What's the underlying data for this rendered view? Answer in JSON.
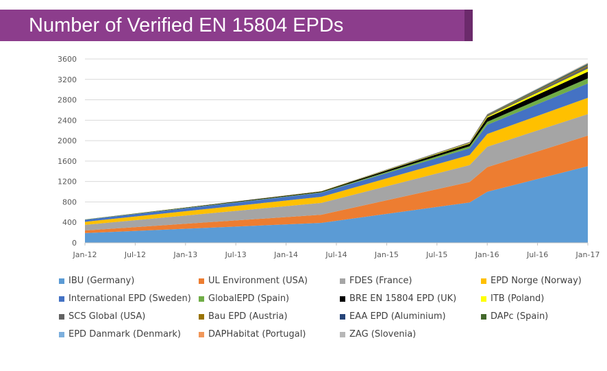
{
  "header": {
    "title": "Number of Verified EN 15804 EPDs"
  },
  "chart_data": {
    "type": "area",
    "stacked": true,
    "title": "Number of Verified EN 15804 EPDs",
    "xlabel": "",
    "ylabel": "",
    "x_tick_labels": [
      "Jan-12",
      "Jul-12",
      "Jan-13",
      "Jul-13",
      "Jan-14",
      "Jul-14",
      "Jan-15",
      "Jul-15",
      "Jan-16",
      "Jul-16",
      "Jan-17"
    ],
    "y_ticks": [
      0,
      400,
      800,
      1200,
      1600,
      2000,
      2400,
      2800,
      3200,
      3600
    ],
    "ylim": [
      0,
      3600
    ],
    "xlim": [
      0,
      10
    ],
    "grid": "horizontal",
    "legend_position": "bottom",
    "x": [
      0,
      4.7,
      7.65,
      8,
      10
    ],
    "series": [
      {
        "name": "IBU (Germany)",
        "color": "#5b9bd5",
        "values": [
          190,
          390,
          790,
          1000,
          1500
        ]
      },
      {
        "name": "UL Environment (USA)",
        "color": "#ed7d31",
        "values": [
          50,
          160,
          400,
          480,
          600
        ]
      },
      {
        "name": "FDES (France)",
        "color": "#a5a5a5",
        "values": [
          110,
          230,
          330,
          400,
          420
        ]
      },
      {
        "name": "EPD Norge (Norway)",
        "color": "#ffc000",
        "values": [
          60,
          120,
          200,
          250,
          320
        ]
      },
      {
        "name": "International EPD (Sweden)",
        "color": "#4472c4",
        "values": [
          40,
          80,
          130,
          180,
          280
        ]
      },
      {
        "name": "GlobalEPD (Spain)",
        "color": "#70ad47",
        "values": [
          5,
          10,
          40,
          60,
          100
        ]
      },
      {
        "name": "BRE EN 15804 EPD (UK)",
        "color": "#000000",
        "values": [
          2,
          15,
          50,
          80,
          130
        ]
      },
      {
        "name": "ITB (Poland)",
        "color": "#ffff00",
        "values": [
          0,
          2,
          10,
          20,
          60
        ]
      },
      {
        "name": "SCS Global (USA)",
        "color": "#636363",
        "values": [
          0,
          2,
          10,
          20,
          50
        ]
      },
      {
        "name": "Bau EPD (Austria)",
        "color": "#997300",
        "values": [
          0,
          1,
          5,
          10,
          20
        ]
      },
      {
        "name": "EAA EPD (Aluminium)",
        "color": "#264478",
        "values": [
          0,
          1,
          5,
          8,
          15
        ]
      },
      {
        "name": "DAPc (Spain)",
        "color": "#43682b",
        "values": [
          0,
          1,
          3,
          5,
          12
        ]
      },
      {
        "name": "EPD Danmark (Denmark)",
        "color": "#7cafdd",
        "values": [
          0,
          0,
          2,
          5,
          10
        ]
      },
      {
        "name": "DAPHabitat (Portugal)",
        "color": "#f1975a",
        "values": [
          0,
          0,
          2,
          3,
          5
        ]
      },
      {
        "name": "ZAG (Slovenia)",
        "color": "#b7b7b7",
        "values": [
          0,
          0,
          2,
          3,
          5
        ]
      }
    ]
  }
}
